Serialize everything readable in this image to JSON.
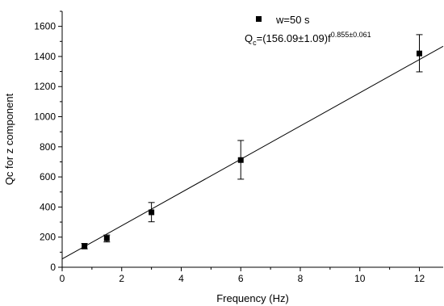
{
  "chart_data": {
    "type": "scatter",
    "xlabel": "Frequency (Hz)",
    "ylabel": "Qc for z component",
    "xlim": [
      0,
      12.8
    ],
    "ylim": [
      0,
      1700
    ],
    "xticks": [
      "0",
      "2",
      "4",
      "6",
      "8",
      "10",
      "12"
    ],
    "yticks": [
      "0",
      "200",
      "400",
      "600",
      "800",
      "1000",
      "1200",
      "1400",
      "1600"
    ],
    "xtick_values": [
      0,
      2,
      4,
      6,
      8,
      10,
      12
    ],
    "ytick_values": [
      0,
      200,
      400,
      600,
      800,
      1000,
      1200,
      1400,
      1600
    ],
    "series": [
      {
        "name": "w=50 s",
        "marker": "square",
        "color": "#000000",
        "x": [
          0.75,
          1.5,
          3,
          6,
          12
        ],
        "y": [
          140,
          192,
          365,
          712,
          1420
        ],
        "err_low": [
          122,
          168,
          302,
          585,
          1298
        ],
        "err_high": [
          158,
          214,
          430,
          842,
          1545
        ]
      }
    ],
    "fit_line": {
      "x": [
        0,
        12.8
      ],
      "y": [
        55,
        1468
      ]
    },
    "legend": {
      "placement": "top-right",
      "label": "w=50 s"
    },
    "annotation": {
      "prefix": "Q",
      "sub": "c",
      "mid": "=(156.09±1.09)f",
      "sup": "0.855±0.061"
    },
    "grid": false
  }
}
